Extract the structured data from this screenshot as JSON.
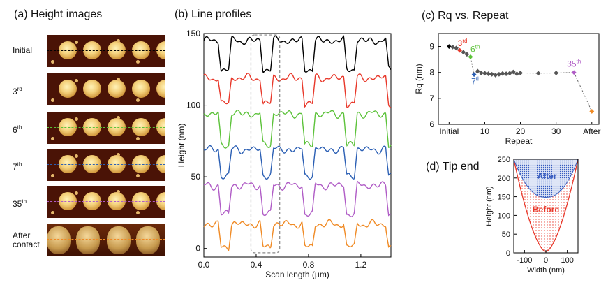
{
  "panels": {
    "a_title": "(a) Height images",
    "b_title": "(b) Line profiles",
    "c_title": "(c) Rq vs. Repeat",
    "d_title": "(d) Tip end"
  },
  "afm_rows": [
    {
      "label": "Initial",
      "sup": "",
      "line_color": "#000000"
    },
    {
      "label": "3",
      "sup": "rd",
      "line_color": "#e8382a"
    },
    {
      "label": "6",
      "sup": "th",
      "line_color": "#5cc23a"
    },
    {
      "label": "7",
      "sup": "th",
      "line_color": "#2b5fb4"
    },
    {
      "label": "35",
      "sup": "th",
      "line_color": "#b05cc6"
    },
    {
      "label": "After\ncontact",
      "sup": "",
      "line_color": "#f08a24"
    }
  ],
  "chart_data": [
    {
      "type": "line",
      "panel": "b",
      "xlabel": "Scan length (μm)",
      "ylabel": "Height (nm)",
      "xlim": [
        0.0,
        1.43
      ],
      "ylim": [
        -6,
        150
      ],
      "xticks": [
        0.0,
        0.4,
        0.8,
        1.2
      ],
      "yticks": [
        0,
        50,
        100,
        150
      ],
      "series": [
        {
          "color": "#000000",
          "high": 145,
          "low": 125
        },
        {
          "color": "#e8382a",
          "high": 119,
          "low": 101
        },
        {
          "color": "#5cc23a",
          "high": 94,
          "low": 72
        },
        {
          "color": "#2b5fb4",
          "high": 69,
          "low": 51
        },
        {
          "color": "#b05cc6",
          "high": 44,
          "low": 24
        },
        {
          "color": "#f08a24",
          "high": 17,
          "low": 1
        }
      ],
      "profile_shape": {
        "period": 0.32,
        "first_drop": 0.11,
        "low_width": 0.08
      },
      "highlight_box": {
        "x": [
          0.36,
          0.58
        ],
        "y": [
          -3,
          149
        ]
      }
    },
    {
      "type": "scatter",
      "panel": "c",
      "xlabel": "Repeat",
      "ylabel": "Rq (nm)",
      "ylim": [
        6.0,
        9.5
      ],
      "xlim": [
        -3,
        42
      ],
      "yticks": [
        6,
        7,
        8,
        9
      ],
      "xtick_labels": [
        {
          "x": 0,
          "label": "Initial"
        },
        {
          "x": 10,
          "label": "10"
        },
        {
          "x": 20,
          "label": "20"
        },
        {
          "x": 30,
          "label": "30"
        },
        {
          "x": 40,
          "label": "After"
        }
      ],
      "points": [
        {
          "x": 0,
          "y": 9.0,
          "color": "#000000"
        },
        {
          "x": 1,
          "y": 8.98,
          "color": "#555555"
        },
        {
          "x": 2,
          "y": 8.94,
          "color": "#555555"
        },
        {
          "x": 3,
          "y": 8.85,
          "color": "#e8382a"
        },
        {
          "x": 4,
          "y": 8.78,
          "color": "#555555"
        },
        {
          "x": 5,
          "y": 8.7,
          "color": "#555555"
        },
        {
          "x": 6,
          "y": 8.6,
          "color": "#5cc23a"
        },
        {
          "x": 7,
          "y": 7.92,
          "color": "#2b5fb4"
        },
        {
          "x": 8,
          "y": 8.05,
          "color": "#555555"
        },
        {
          "x": 9,
          "y": 7.98,
          "color": "#555555"
        },
        {
          "x": 10,
          "y": 7.97,
          "color": "#555555"
        },
        {
          "x": 11,
          "y": 7.95,
          "color": "#555555"
        },
        {
          "x": 12,
          "y": 7.93,
          "color": "#555555"
        },
        {
          "x": 13,
          "y": 7.9,
          "color": "#555555"
        },
        {
          "x": 14,
          "y": 7.93,
          "color": "#555555"
        },
        {
          "x": 15,
          "y": 7.96,
          "color": "#555555"
        },
        {
          "x": 16,
          "y": 7.95,
          "color": "#555555"
        },
        {
          "x": 17,
          "y": 7.97,
          "color": "#555555"
        },
        {
          "x": 18,
          "y": 8.02,
          "color": "#555555"
        },
        {
          "x": 19,
          "y": 7.95,
          "color": "#555555"
        },
        {
          "x": 20,
          "y": 7.98,
          "color": "#555555"
        },
        {
          "x": 25,
          "y": 7.97,
          "color": "#555555"
        },
        {
          "x": 30,
          "y": 7.98,
          "color": "#555555"
        },
        {
          "x": 35,
          "y": 8.0,
          "color": "#b05cc6"
        },
        {
          "x": 40,
          "y": 6.5,
          "color": "#f08a24"
        }
      ],
      "annotations": [
        {
          "x": 3,
          "y": 8.85,
          "label": "3",
          "sup": "rd",
          "color": "#e8382a"
        },
        {
          "x": 6,
          "y": 8.6,
          "label": "6",
          "sup": "th",
          "color": "#5cc23a"
        },
        {
          "x": 7,
          "y": 7.92,
          "label": "7",
          "sup": "th",
          "color": "#2b5fb4"
        },
        {
          "x": 35,
          "y": 8.0,
          "label": "35",
          "sup": "th",
          "color": "#b05cc6"
        }
      ]
    },
    {
      "type": "area",
      "panel": "d",
      "xlabel": "Width (nm)",
      "ylabel": "Height (nm)",
      "xlim": [
        -150,
        150
      ],
      "ylim": [
        0,
        250
      ],
      "xticks": [
        -100,
        0,
        100
      ],
      "xtick_labels": [
        "-100",
        "0",
        "100"
      ],
      "yticks": [
        0,
        50,
        100,
        150,
        200,
        250
      ],
      "series": [
        {
          "name": "Before",
          "color": "#e8382a",
          "tip_bottom": 3,
          "half_width_at_top": 150
        },
        {
          "name": "After",
          "color": "#3a5ec0",
          "tip_bottom": 148,
          "half_width_at_top": 150
        }
      ]
    }
  ]
}
